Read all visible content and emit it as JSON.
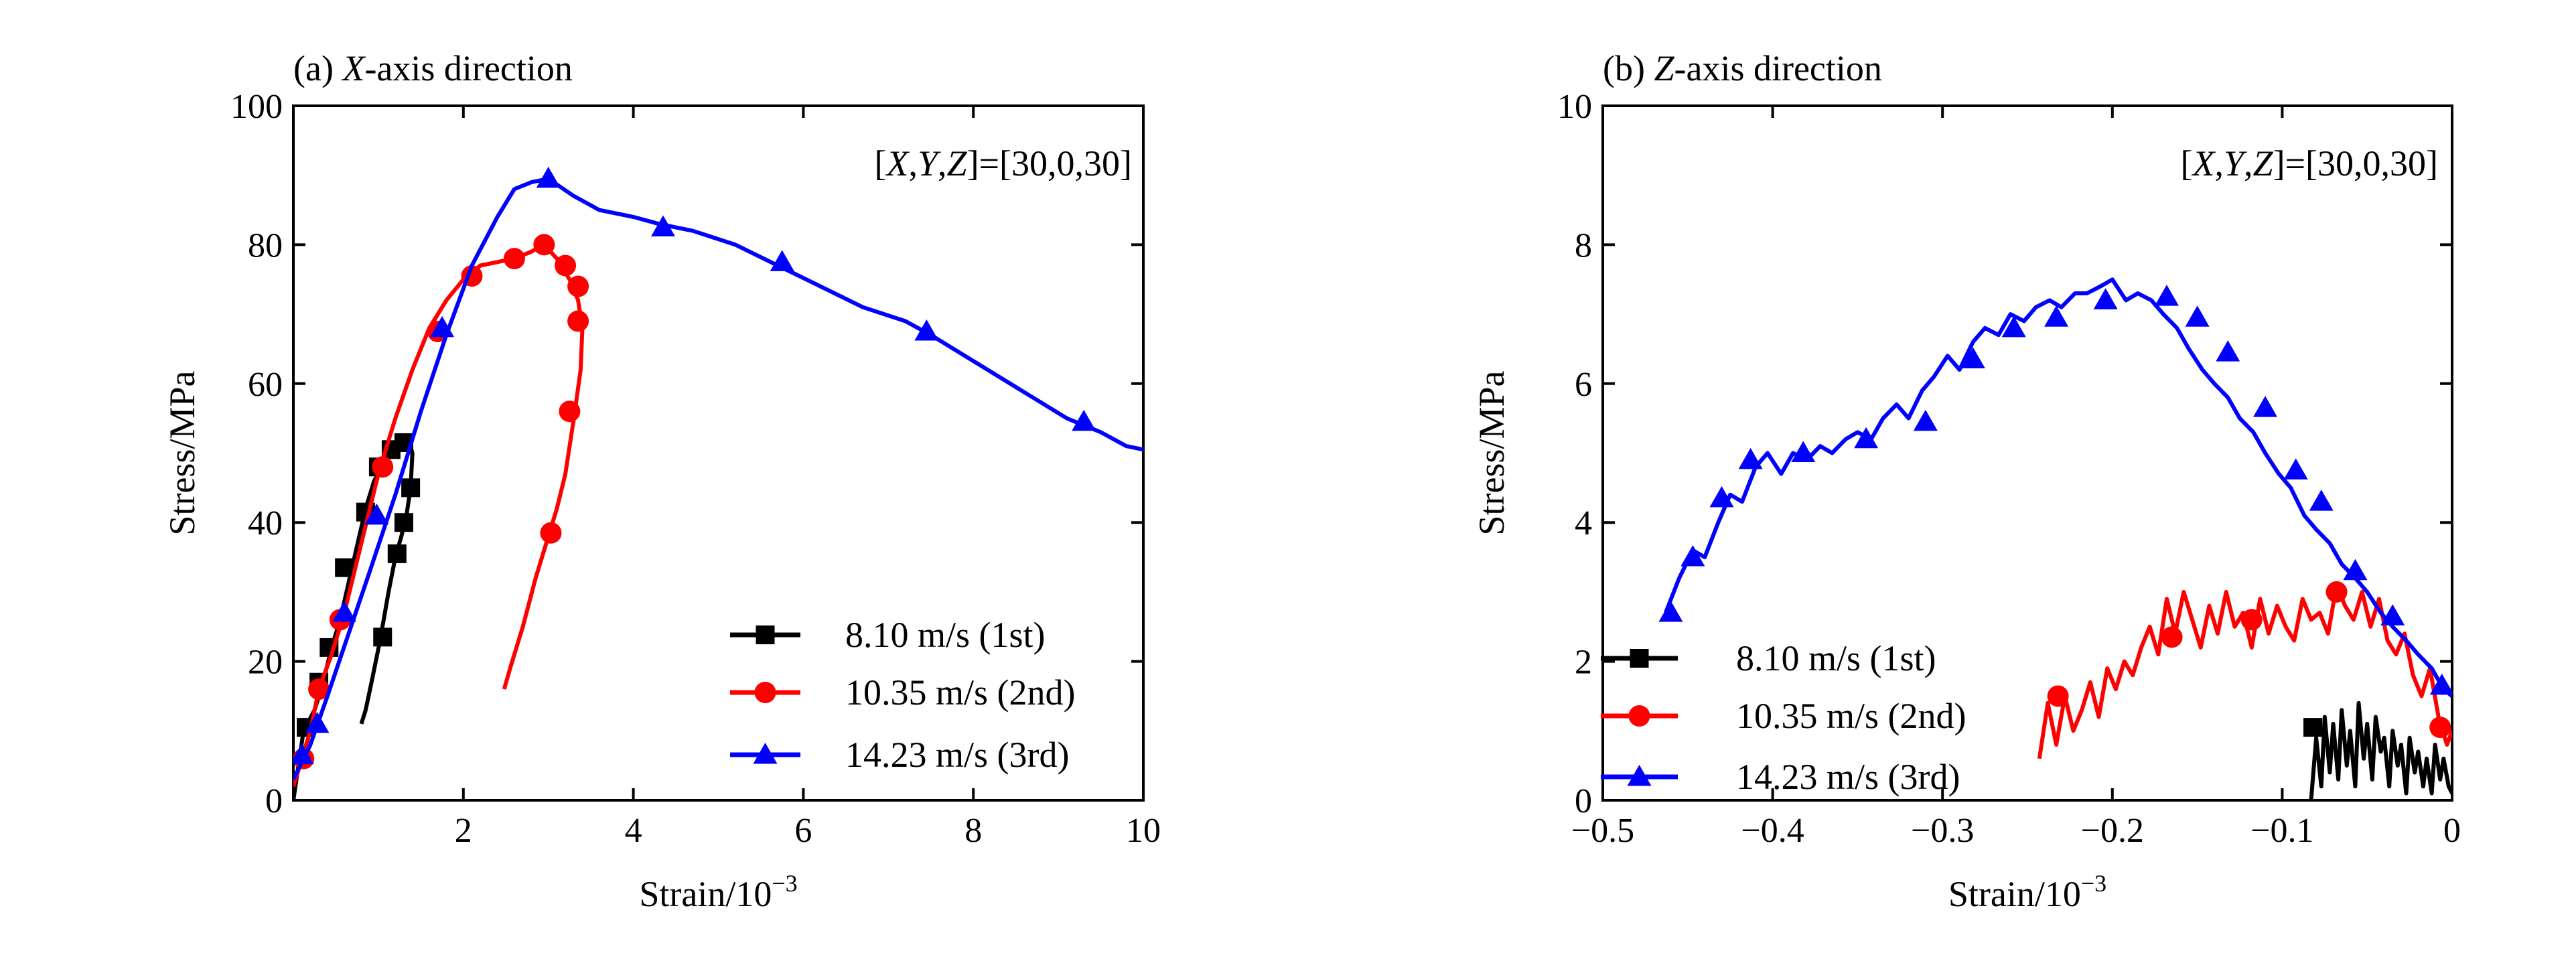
{
  "chart_data": [
    {
      "type": "line",
      "title_prefix": "(a) ",
      "title_axis": "X",
      "title_suffix": "-axis direction",
      "xlabel_base": "Strain/10",
      "xlabel_exp": "−3",
      "ylabel": "Stress/MPa",
      "xlim": [
        0,
        10
      ],
      "ylim": [
        0,
        100
      ],
      "xticks": [
        2,
        4,
        6,
        8,
        10
      ],
      "xtick_labels": [
        "2",
        "4",
        "6",
        "8",
        "10"
      ],
      "yticks": [
        0,
        20,
        40,
        60,
        80,
        100
      ],
      "ytick_labels": [
        "0",
        "20",
        "40",
        "60",
        "80",
        "100"
      ],
      "annotation": {
        "pre": "[",
        "vars": [
          "X",
          "Y",
          "Z"
        ],
        "post": "]=[30,0,30]"
      },
      "legend_position": "bottom-right",
      "series": [
        {
          "name": "8.10 m/s (1st)",
          "color": "#000000",
          "marker": "square",
          "x": [
            0.0,
            0.12,
            0.25,
            0.35,
            0.45,
            0.55,
            0.7,
            0.85,
            0.95,
            1.05,
            1.15,
            1.25,
            1.35,
            1.4,
            1.38,
            1.33,
            1.27,
            1.2,
            1.12,
            1.02,
            0.92,
            0.85,
            0.8
          ],
          "y": [
            0,
            10,
            13,
            17,
            22,
            26,
            34,
            42,
            46,
            48,
            50,
            51,
            52,
            50,
            45,
            41,
            38,
            35,
            30,
            23,
            17,
            13,
            11
          ],
          "markers": [
            [
              0.15,
              10.5
            ],
            [
              0.3,
              17
            ],
            [
              0.42,
              22
            ],
            [
              0.6,
              33.5
            ],
            [
              0.85,
              41.5
            ],
            [
              1.0,
              48
            ],
            [
              1.15,
              50.5
            ],
            [
              1.3,
              51.5
            ],
            [
              1.38,
              45
            ],
            [
              1.3,
              40
            ],
            [
              1.22,
              35.5
            ],
            [
              1.05,
              23.5
            ]
          ]
        },
        {
          "name": "10.35 m/s (2nd)",
          "color": "#ff0000",
          "marker": "circle",
          "x": [
            0.0,
            0.1,
            0.2,
            0.3,
            0.45,
            0.6,
            0.8,
            1.0,
            1.2,
            1.4,
            1.6,
            1.8,
            2.0,
            2.2,
            2.4,
            2.6,
            2.8,
            2.95,
            3.1,
            3.25,
            3.35,
            3.4,
            3.38,
            3.3,
            3.2,
            3.1,
            3.0,
            2.85,
            2.7,
            2.55,
            2.48
          ],
          "y": [
            2,
            6,
            10,
            16,
            21,
            27,
            37,
            47,
            55,
            62,
            68,
            72,
            75,
            77,
            77.5,
            78,
            79,
            80,
            78,
            75,
            72,
            68,
            62,
            55,
            47,
            42,
            38,
            32,
            25,
            19,
            16
          ],
          "markers": [
            [
              0.12,
              6
            ],
            [
              0.3,
              16
            ],
            [
              0.55,
              26
            ],
            [
              1.05,
              48
            ],
            [
              1.7,
              67.5
            ],
            [
              2.1,
              75.5
            ],
            [
              2.6,
              78
            ],
            [
              2.95,
              80
            ],
            [
              3.2,
              77
            ],
            [
              3.35,
              74
            ],
            [
              3.35,
              69
            ],
            [
              3.25,
              56
            ],
            [
              3.03,
              38.5
            ]
          ]
        },
        {
          "name": "14.23 m/s (3rd)",
          "color": "#0000ff",
          "marker": "triangle",
          "x": [
            0.0,
            0.2,
            0.4,
            0.65,
            0.9,
            1.2,
            1.5,
            1.8,
            2.1,
            2.4,
            2.6,
            2.8,
            3.0,
            3.3,
            3.6,
            4.0,
            4.3,
            4.7,
            5.2,
            5.7,
            6.2,
            6.7,
            7.2,
            7.5,
            7.9,
            8.3,
            8.7,
            9.1,
            9.5,
            9.8,
            10.0
          ],
          "y": [
            3,
            8,
            15,
            24,
            33,
            44,
            56,
            67,
            77,
            84,
            88,
            89,
            89.5,
            87,
            85,
            84,
            83,
            82,
            80,
            77,
            74,
            71,
            69,
            67,
            64,
            61,
            58,
            55,
            53,
            51,
            50.5
          ],
          "markers": [
            [
              0.1,
              6.5
            ],
            [
              0.28,
              11
            ],
            [
              0.6,
              27
            ],
            [
              0.98,
              41
            ],
            [
              1.75,
              68
            ],
            [
              3.0,
              89.5
            ],
            [
              4.35,
              82.5
            ],
            [
              5.75,
              77.5
            ],
            [
              7.45,
              67.5
            ],
            [
              9.3,
              54.5
            ]
          ]
        }
      ]
    },
    {
      "type": "line",
      "title_prefix": "(b) ",
      "title_axis": "Z",
      "title_suffix": "-axis direction",
      "xlabel_base": "Strain/10",
      "xlabel_exp": "−3",
      "ylabel": "Stress/MPa",
      "xlim": [
        -0.5,
        0
      ],
      "ylim": [
        0,
        10
      ],
      "xticks": [
        -0.5,
        -0.4,
        -0.3,
        -0.2,
        -0.1,
        0
      ],
      "xtick_labels": [
        "−0.5",
        "−0.4",
        "−0.3",
        "−0.2",
        "−0.1",
        "0"
      ],
      "yticks": [
        0,
        2,
        4,
        6,
        8,
        10
      ],
      "ytick_labels": [
        "0",
        "2",
        "4",
        "6",
        "8",
        "10"
      ],
      "annotation": {
        "pre": "[",
        "vars": [
          "X",
          "Y",
          "Z"
        ],
        "post": "]=[30,0,30]"
      },
      "legend_position": "bottom-left",
      "series": [
        {
          "name": "8.10 m/s (1st)",
          "color": "#000000",
          "marker": "square",
          "x": [
            -0.083,
            -0.08,
            -0.077,
            -0.075,
            -0.072,
            -0.07,
            -0.067,
            -0.065,
            -0.062,
            -0.06,
            -0.057,
            -0.055,
            -0.052,
            -0.05,
            -0.047,
            -0.045,
            -0.042,
            -0.04,
            -0.037,
            -0.035,
            -0.032,
            -0.03,
            -0.027,
            -0.025,
            -0.022,
            -0.02,
            -0.017,
            -0.015,
            -0.012,
            -0.01,
            -0.007,
            -0.005,
            -0.002,
            0.0
          ],
          "y": [
            0.0,
            0.9,
            0.2,
            1.2,
            0.4,
            1.1,
            0.3,
            1.3,
            0.5,
            1.0,
            0.2,
            1.4,
            0.6,
            1.1,
            0.3,
            1.2,
            0.7,
            0.9,
            0.2,
            1.0,
            0.5,
            0.8,
            0.1,
            0.9,
            0.4,
            0.7,
            0.2,
            0.6,
            0.1,
            0.8,
            0.3,
            0.6,
            0.2,
            0.1
          ],
          "markers": [
            [
              -0.082,
              1.05
            ]
          ]
        },
        {
          "name": "10.35 m/s (2nd)",
          "color": "#ff0000",
          "marker": "circle",
          "x": [
            -0.243,
            -0.238,
            -0.233,
            -0.228,
            -0.223,
            -0.218,
            -0.213,
            -0.208,
            -0.203,
            -0.198,
            -0.193,
            -0.188,
            -0.183,
            -0.178,
            -0.173,
            -0.168,
            -0.163,
            -0.158,
            -0.153,
            -0.148,
            -0.143,
            -0.138,
            -0.133,
            -0.128,
            -0.123,
            -0.118,
            -0.113,
            -0.108,
            -0.103,
            -0.098,
            -0.093,
            -0.088,
            -0.083,
            -0.078,
            -0.073,
            -0.068,
            -0.063,
            -0.058,
            -0.053,
            -0.048,
            -0.043,
            -0.038,
            -0.033,
            -0.028,
            -0.023,
            -0.018,
            -0.013,
            -0.008,
            -0.003,
            0.0
          ],
          "y": [
            0.6,
            1.4,
            0.8,
            1.5,
            1.0,
            1.3,
            1.7,
            1.2,
            1.9,
            1.6,
            2.0,
            1.8,
            2.2,
            2.5,
            2.1,
            2.9,
            2.4,
            3.0,
            2.6,
            2.2,
            2.8,
            2.4,
            3.0,
            2.5,
            2.7,
            2.2,
            2.9,
            2.4,
            2.8,
            2.5,
            2.3,
            2.9,
            2.6,
            2.7,
            2.4,
            3.1,
            2.8,
            2.6,
            3.0,
            2.5,
            2.9,
            2.3,
            2.1,
            2.4,
            1.8,
            1.5,
            1.9,
            1.2,
            0.8,
            1.0
          ],
          "markers": [
            [
              -0.232,
              1.5
            ],
            [
              -0.165,
              2.35
            ],
            [
              -0.118,
              2.6
            ],
            [
              -0.068,
              3.0
            ],
            [
              -0.007,
              1.05
            ]
          ]
        },
        {
          "name": "14.23 m/s (3rd)",
          "color": "#0000ff",
          "marker": "triangle",
          "x": [
            -0.463,
            -0.455,
            -0.447,
            -0.44,
            -0.432,
            -0.425,
            -0.418,
            -0.41,
            -0.403,
            -0.395,
            -0.388,
            -0.38,
            -0.372,
            -0.365,
            -0.357,
            -0.35,
            -0.342,
            -0.335,
            -0.327,
            -0.32,
            -0.312,
            -0.305,
            -0.297,
            -0.29,
            -0.282,
            -0.275,
            -0.267,
            -0.26,
            -0.252,
            -0.245,
            -0.237,
            -0.23,
            -0.222,
            -0.215,
            -0.207,
            -0.2,
            -0.192,
            -0.185,
            -0.177,
            -0.17,
            -0.162,
            -0.155,
            -0.147,
            -0.14,
            -0.132,
            -0.125,
            -0.117,
            -0.11,
            -0.102,
            -0.095,
            -0.087,
            -0.08,
            -0.072,
            -0.065,
            -0.057,
            -0.05,
            -0.042,
            -0.035,
            -0.027,
            -0.02,
            -0.012,
            -0.005,
            0.0
          ],
          "y": [
            2.7,
            3.2,
            3.6,
            3.5,
            4.0,
            4.4,
            4.3,
            4.8,
            5.0,
            4.7,
            5.0,
            4.9,
            5.1,
            5.0,
            5.2,
            5.3,
            5.2,
            5.5,
            5.7,
            5.5,
            5.9,
            6.1,
            6.4,
            6.2,
            6.6,
            6.8,
            6.7,
            7.0,
            6.9,
            7.1,
            7.2,
            7.1,
            7.3,
            7.3,
            7.4,
            7.5,
            7.2,
            7.3,
            7.2,
            7.0,
            6.8,
            6.5,
            6.2,
            6.0,
            5.8,
            5.5,
            5.3,
            5.0,
            4.7,
            4.5,
            4.1,
            3.9,
            3.7,
            3.4,
            3.2,
            3.0,
            2.7,
            2.5,
            2.3,
            2.1,
            1.9,
            1.6,
            1.5
          ],
          "markers": [
            [
              -0.46,
              2.7
            ],
            [
              -0.447,
              3.5
            ],
            [
              -0.43,
              4.35
            ],
            [
              -0.413,
              4.9
            ],
            [
              -0.382,
              5.0
            ],
            [
              -0.345,
              5.2
            ],
            [
              -0.31,
              5.45
            ],
            [
              -0.282,
              6.35
            ],
            [
              -0.258,
              6.8
            ],
            [
              -0.233,
              6.95
            ],
            [
              -0.204,
              7.2
            ],
            [
              -0.168,
              7.25
            ],
            [
              -0.15,
              6.95
            ],
            [
              -0.132,
              6.45
            ],
            [
              -0.11,
              5.65
            ],
            [
              -0.092,
              4.75
            ],
            [
              -0.077,
              4.3
            ],
            [
              -0.057,
              3.3
            ],
            [
              -0.035,
              2.65
            ],
            [
              -0.006,
              1.65
            ]
          ]
        }
      ]
    }
  ]
}
